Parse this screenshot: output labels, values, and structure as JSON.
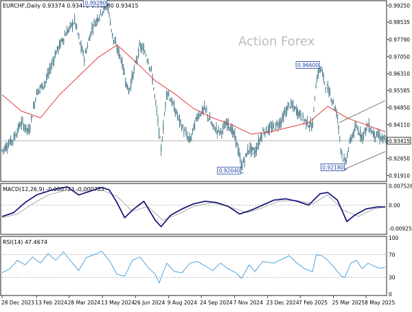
{
  "header": {
    "symbol_line": "EURCHF,Daily  0.93374 0.93472 0.93280 0.93415",
    "watermark": "Action Forex"
  },
  "colors": {
    "candle": "#4a7a8c",
    "moving_average": "#e23b3b",
    "macd_line": "#1a1a7a",
    "signal_line": "#aaaaaa",
    "rsi_line": "#3a9ad9",
    "grid_line": "#9a9a9a",
    "annotation_border": "#1a3fa0"
  },
  "chart_data": [
    {
      "type": "line",
      "panel": "price",
      "ylim": [
        0.9172,
        0.994
      ],
      "y_ticks": [
        "0.99250",
        "0.98535",
        "0.97790",
        "0.97050",
        "0.96310",
        "0.95585",
        "0.94850",
        "0.94110",
        "0.93415",
        "0.92650",
        "0.91910"
      ],
      "current_price_label": "0.93415",
      "reference_line": 0.93415,
      "price_path": [
        {
          "t": 0,
          "v": 0.93
        },
        {
          "t": 0.03,
          "v": 0.935
        },
        {
          "t": 0.05,
          "v": 0.942
        },
        {
          "t": 0.07,
          "v": 0.938
        },
        {
          "t": 0.09,
          "v": 0.955
        },
        {
          "t": 0.115,
          "v": 0.96
        },
        {
          "t": 0.14,
          "v": 0.972
        },
        {
          "t": 0.165,
          "v": 0.98
        },
        {
          "t": 0.19,
          "v": 0.986
        },
        {
          "t": 0.205,
          "v": 0.975
        },
        {
          "t": 0.215,
          "v": 0.97
        },
        {
          "t": 0.235,
          "v": 0.983
        },
        {
          "t": 0.26,
          "v": 0.99
        },
        {
          "t": 0.275,
          "v": 0.9928
        },
        {
          "t": 0.29,
          "v": 0.978
        },
        {
          "t": 0.31,
          "v": 0.97
        },
        {
          "t": 0.33,
          "v": 0.955
        },
        {
          "t": 0.345,
          "v": 0.965
        },
        {
          "t": 0.36,
          "v": 0.975
        },
        {
          "t": 0.375,
          "v": 0.972
        },
        {
          "t": 0.39,
          "v": 0.964
        },
        {
          "t": 0.405,
          "v": 0.945
        },
        {
          "t": 0.415,
          "v": 0.93
        },
        {
          "t": 0.43,
          "v": 0.956
        },
        {
          "t": 0.45,
          "v": 0.948
        },
        {
          "t": 0.47,
          "v": 0.94
        },
        {
          "t": 0.49,
          "v": 0.934
        },
        {
          "t": 0.51,
          "v": 0.945
        },
        {
          "t": 0.53,
          "v": 0.948
        },
        {
          "t": 0.55,
          "v": 0.94
        },
        {
          "t": 0.57,
          "v": 0.938
        },
        {
          "t": 0.59,
          "v": 0.942
        },
        {
          "t": 0.61,
          "v": 0.935
        },
        {
          "t": 0.625,
          "v": 0.923
        },
        {
          "t": 0.645,
          "v": 0.931
        },
        {
          "t": 0.66,
          "v": 0.929
        },
        {
          "t": 0.68,
          "v": 0.938
        },
        {
          "t": 0.71,
          "v": 0.94
        },
        {
          "t": 0.73,
          "v": 0.943
        },
        {
          "t": 0.75,
          "v": 0.95
        },
        {
          "t": 0.77,
          "v": 0.947
        },
        {
          "t": 0.79,
          "v": 0.943
        },
        {
          "t": 0.81,
          "v": 0.94
        },
        {
          "t": 0.82,
          "v": 0.96
        },
        {
          "t": 0.83,
          "v": 0.966
        },
        {
          "t": 0.845,
          "v": 0.958
        },
        {
          "t": 0.86,
          "v": 0.953
        },
        {
          "t": 0.875,
          "v": 0.945
        },
        {
          "t": 0.885,
          "v": 0.93
        },
        {
          "t": 0.895,
          "v": 0.924
        },
        {
          "t": 0.91,
          "v": 0.935
        },
        {
          "t": 0.925,
          "v": 0.94
        },
        {
          "t": 0.94,
          "v": 0.936
        },
        {
          "t": 0.955,
          "v": 0.941
        },
        {
          "t": 0.97,
          "v": 0.937
        },
        {
          "t": 0.985,
          "v": 0.936
        },
        {
          "t": 1.0,
          "v": 0.93415
        }
      ],
      "moving_average": [
        {
          "t": 0,
          "v": 0.954
        },
        {
          "t": 0.05,
          "v": 0.947
        },
        {
          "t": 0.1,
          "v": 0.944
        },
        {
          "t": 0.15,
          "v": 0.954
        },
        {
          "t": 0.2,
          "v": 0.962
        },
        {
          "t": 0.25,
          "v": 0.97
        },
        {
          "t": 0.3,
          "v": 0.9755
        },
        {
          "t": 0.35,
          "v": 0.968
        },
        {
          "t": 0.4,
          "v": 0.96
        },
        {
          "t": 0.45,
          "v": 0.9545
        },
        {
          "t": 0.5,
          "v": 0.948
        },
        {
          "t": 0.55,
          "v": 0.944
        },
        {
          "t": 0.6,
          "v": 0.941
        },
        {
          "t": 0.65,
          "v": 0.937
        },
        {
          "t": 0.7,
          "v": 0.938
        },
        {
          "t": 0.75,
          "v": 0.94
        },
        {
          "t": 0.8,
          "v": 0.942
        },
        {
          "t": 0.85,
          "v": 0.949
        },
        {
          "t": 0.9,
          "v": 0.944
        },
        {
          "t": 0.95,
          "v": 0.941
        },
        {
          "t": 1.0,
          "v": 0.938
        }
      ],
      "trend_channel": {
        "upper": [
          {
            "t": 0.88,
            "v": 0.942
          },
          {
            "t": 1.0,
            "v": 0.9515
          }
        ],
        "lower": [
          {
            "t": 0.885,
            "v": 0.9212
          },
          {
            "t": 1.0,
            "v": 0.9295
          }
        ]
      },
      "annotations": [
        {
          "label": "0.99280",
          "t": 0.275,
          "v": 0.9928,
          "pos": "left"
        },
        {
          "label": "0.96600",
          "t": 0.83,
          "v": 0.966,
          "pos": "left"
        },
        {
          "label": "0.92040",
          "t": 0.625,
          "v": 0.9204,
          "pos": "left"
        },
        {
          "label": "0.92180",
          "t": 0.895,
          "v": 0.9218,
          "pos": "left"
        }
      ]
    },
    {
      "type": "line",
      "panel": "macd",
      "label": "MACD(12,26,9) -0.000723 -0.000753",
      "ylim": [
        -0.011,
        0.008
      ],
      "y_ticks": [
        "0.007526",
        "0.00",
        "-0.009252"
      ],
      "macd": [
        {
          "t": 0,
          "v": -0.0045
        },
        {
          "t": 0.03,
          "v": -0.003
        },
        {
          "t": 0.06,
          "v": 0.001
        },
        {
          "t": 0.09,
          "v": 0.004
        },
        {
          "t": 0.13,
          "v": 0.006
        },
        {
          "t": 0.17,
          "v": 0.0072
        },
        {
          "t": 0.2,
          "v": 0.004
        },
        {
          "t": 0.23,
          "v": 0.0055
        },
        {
          "t": 0.26,
          "v": 0.007
        },
        {
          "t": 0.28,
          "v": 0.006
        },
        {
          "t": 0.3,
          "v": 0.001
        },
        {
          "t": 0.32,
          "v": -0.005
        },
        {
          "t": 0.34,
          "v": -0.002
        },
        {
          "t": 0.37,
          "v": 0.0015
        },
        {
          "t": 0.4,
          "v": -0.006
        },
        {
          "t": 0.415,
          "v": -0.0085
        },
        {
          "t": 0.44,
          "v": -0.004
        },
        {
          "t": 0.47,
          "v": -0.0015
        },
        {
          "t": 0.5,
          "v": 0.0005
        },
        {
          "t": 0.53,
          "v": 0.0015
        },
        {
          "t": 0.56,
          "v": 0.001
        },
        {
          "t": 0.59,
          "v": -0.0005
        },
        {
          "t": 0.62,
          "v": -0.0035
        },
        {
          "t": 0.65,
          "v": -0.002
        },
        {
          "t": 0.68,
          "v": 0.0
        },
        {
          "t": 0.71,
          "v": 0.002
        },
        {
          "t": 0.74,
          "v": 0.0025
        },
        {
          "t": 0.77,
          "v": 0.0015
        },
        {
          "t": 0.8,
          "v": 0.0
        },
        {
          "t": 0.83,
          "v": 0.0045
        },
        {
          "t": 0.85,
          "v": 0.005
        },
        {
          "t": 0.875,
          "v": 0.002
        },
        {
          "t": 0.9,
          "v": -0.0065
        },
        {
          "t": 0.92,
          "v": -0.004
        },
        {
          "t": 0.95,
          "v": -0.0015
        },
        {
          "t": 0.98,
          "v": -0.0007
        },
        {
          "t": 1.0,
          "v": -0.000723
        }
      ],
      "signal": [
        {
          "t": 0,
          "v": -0.005
        },
        {
          "t": 0.04,
          "v": -0.0035
        },
        {
          "t": 0.08,
          "v": 0.0005
        },
        {
          "t": 0.12,
          "v": 0.004
        },
        {
          "t": 0.17,
          "v": 0.006
        },
        {
          "t": 0.21,
          "v": 0.0055
        },
        {
          "t": 0.26,
          "v": 0.006
        },
        {
          "t": 0.3,
          "v": 0.0035
        },
        {
          "t": 0.34,
          "v": -0.0025
        },
        {
          "t": 0.38,
          "v": -0.0005
        },
        {
          "t": 0.42,
          "v": -0.006
        },
        {
          "t": 0.46,
          "v": -0.0035
        },
        {
          "t": 0.5,
          "v": -0.0005
        },
        {
          "t": 0.55,
          "v": 0.001
        },
        {
          "t": 0.6,
          "v": -0.001
        },
        {
          "t": 0.64,
          "v": -0.003
        },
        {
          "t": 0.68,
          "v": -0.001
        },
        {
          "t": 0.72,
          "v": 0.0015
        },
        {
          "t": 0.77,
          "v": 0.0018
        },
        {
          "t": 0.81,
          "v": 0.0005
        },
        {
          "t": 0.85,
          "v": 0.004
        },
        {
          "t": 0.89,
          "v": -0.002
        },
        {
          "t": 0.93,
          "v": -0.0045
        },
        {
          "t": 0.97,
          "v": -0.0015
        },
        {
          "t": 1.0,
          "v": -0.000753
        }
      ]
    },
    {
      "type": "line",
      "panel": "rsi",
      "label": "RSI(14) 47.4674",
      "ylim": [
        0,
        100
      ],
      "y_ticks": [
        100,
        70,
        30,
        0
      ],
      "levels": [
        70,
        30
      ],
      "rsi": [
        {
          "t": 0,
          "v": 38
        },
        {
          "t": 0.02,
          "v": 45
        },
        {
          "t": 0.04,
          "v": 60
        },
        {
          "t": 0.06,
          "v": 52
        },
        {
          "t": 0.08,
          "v": 66
        },
        {
          "t": 0.1,
          "v": 55
        },
        {
          "t": 0.12,
          "v": 72
        },
        {
          "t": 0.14,
          "v": 60
        },
        {
          "t": 0.16,
          "v": 75
        },
        {
          "t": 0.18,
          "v": 58
        },
        {
          "t": 0.2,
          "v": 42
        },
        {
          "t": 0.22,
          "v": 65
        },
        {
          "t": 0.24,
          "v": 70
        },
        {
          "t": 0.26,
          "v": 76
        },
        {
          "t": 0.28,
          "v": 60
        },
        {
          "t": 0.3,
          "v": 35
        },
        {
          "t": 0.32,
          "v": 32
        },
        {
          "t": 0.34,
          "v": 60
        },
        {
          "t": 0.36,
          "v": 66
        },
        {
          "t": 0.38,
          "v": 48
        },
        {
          "t": 0.4,
          "v": 35
        },
        {
          "t": 0.41,
          "v": 20
        },
        {
          "t": 0.43,
          "v": 55
        },
        {
          "t": 0.45,
          "v": 40
        },
        {
          "t": 0.47,
          "v": 38
        },
        {
          "t": 0.49,
          "v": 55
        },
        {
          "t": 0.51,
          "v": 58
        },
        {
          "t": 0.53,
          "v": 50
        },
        {
          "t": 0.55,
          "v": 42
        },
        {
          "t": 0.57,
          "v": 55
        },
        {
          "t": 0.59,
          "v": 45
        },
        {
          "t": 0.61,
          "v": 38
        },
        {
          "t": 0.625,
          "v": 28
        },
        {
          "t": 0.645,
          "v": 52
        },
        {
          "t": 0.66,
          "v": 40
        },
        {
          "t": 0.68,
          "v": 58
        },
        {
          "t": 0.71,
          "v": 55
        },
        {
          "t": 0.73,
          "v": 62
        },
        {
          "t": 0.75,
          "v": 68
        },
        {
          "t": 0.77,
          "v": 55
        },
        {
          "t": 0.79,
          "v": 45
        },
        {
          "t": 0.81,
          "v": 40
        },
        {
          "t": 0.82,
          "v": 70
        },
        {
          "t": 0.835,
          "v": 68
        },
        {
          "t": 0.85,
          "v": 60
        },
        {
          "t": 0.87,
          "v": 45
        },
        {
          "t": 0.885,
          "v": 32
        },
        {
          "t": 0.895,
          "v": 30
        },
        {
          "t": 0.91,
          "v": 55
        },
        {
          "t": 0.925,
          "v": 60
        },
        {
          "t": 0.94,
          "v": 45
        },
        {
          "t": 0.955,
          "v": 55
        },
        {
          "t": 0.97,
          "v": 50
        },
        {
          "t": 0.985,
          "v": 46
        },
        {
          "t": 1.0,
          "v": 47.4674
        }
      ]
    }
  ],
  "x_axis": {
    "labels": [
      "28 Dec 2023",
      "13 Feb 2024",
      "28 Mar 2024",
      "13 May 2024",
      "26 Jun 2024",
      "9 Aug 2024",
      "24 Sep 2024",
      "7 Nov 2024",
      "23 Dec 2024",
      "7 Feb 2025",
      "25 Mar 2025",
      "8 May 2025"
    ],
    "positions": [
      0.0,
      0.09,
      0.175,
      0.262,
      0.348,
      0.435,
      0.52,
      0.607,
      0.693,
      0.778,
      0.865,
      0.95
    ]
  }
}
